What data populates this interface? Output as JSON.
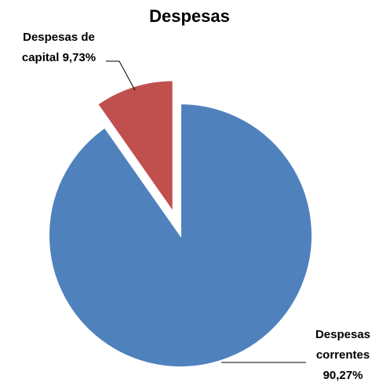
{
  "chart_data": {
    "type": "pie",
    "title": "Despesas",
    "categories": [
      "Despesas correntes",
      "Despesas de capital"
    ],
    "values": [
      90.27,
      9.73
    ],
    "value_labels": [
      "90,27%",
      "9,73%"
    ],
    "colors": [
      "#4f81bd",
      "#c0504d"
    ],
    "exploded": [
      false,
      true
    ]
  }
}
